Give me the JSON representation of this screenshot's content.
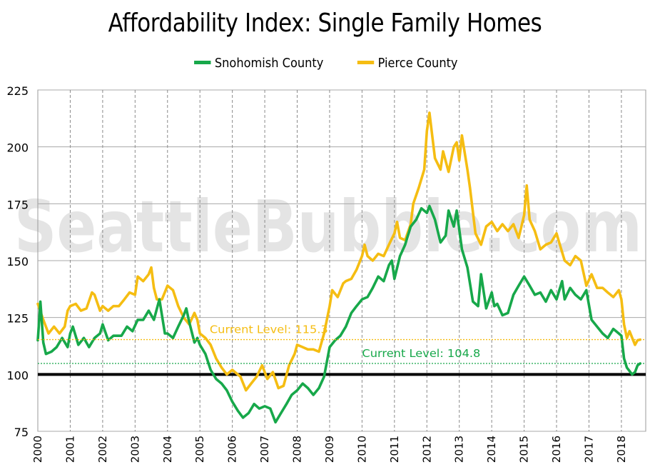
{
  "colors": {
    "snohomish": "#17a84a",
    "pierce": "#f5bd12",
    "baseline": "#000000",
    "watermark": "#e4e4e4"
  },
  "watermark": "SeattleBubble.com",
  "chart_data": {
    "type": "line",
    "title": "Affordability Index: Single Family Homes",
    "xlabel": "",
    "ylabel": "",
    "ylim": [
      75,
      225
    ],
    "xlim": [
      2000,
      2018.75
    ],
    "yticks": [
      "75",
      "100",
      "125",
      "150",
      "175",
      "200",
      "225"
    ],
    "xticks": [
      "2000",
      "2001",
      "2002",
      "2003",
      "2004",
      "2005",
      "2006",
      "2007",
      "2008",
      "2009",
      "2010",
      "2011",
      "2012",
      "2013",
      "2014",
      "2015",
      "2016",
      "2017",
      "2018"
    ],
    "grid": true,
    "legend_position": "top-center",
    "baseline": 100,
    "series": [
      {
        "name": "Snohomish County",
        "color": "#17a84a",
        "points": [
          [
            2000.0,
            115
          ],
          [
            2000.08,
            132
          ],
          [
            2000.17,
            114
          ],
          [
            2000.25,
            109
          ],
          [
            2000.42,
            110
          ],
          [
            2000.58,
            112
          ],
          [
            2000.75,
            116
          ],
          [
            2000.92,
            112
          ],
          [
            2001.0,
            118
          ],
          [
            2001.08,
            121
          ],
          [
            2001.25,
            113
          ],
          [
            2001.42,
            116
          ],
          [
            2001.58,
            112
          ],
          [
            2001.75,
            116
          ],
          [
            2001.92,
            118
          ],
          [
            2002.0,
            122
          ],
          [
            2002.17,
            115
          ],
          [
            2002.33,
            117
          ],
          [
            2002.58,
            117
          ],
          [
            2002.75,
            121
          ],
          [
            2002.92,
            119
          ],
          [
            2003.08,
            124
          ],
          [
            2003.25,
            124
          ],
          [
            2003.42,
            128
          ],
          [
            2003.58,
            124
          ],
          [
            2003.75,
            133
          ],
          [
            2003.92,
            118
          ],
          [
            2004.0,
            118
          ],
          [
            2004.17,
            116
          ],
          [
            2004.33,
            121
          ],
          [
            2004.5,
            126
          ],
          [
            2004.58,
            129
          ],
          [
            2004.67,
            123
          ],
          [
            2004.83,
            114
          ],
          [
            2004.92,
            116
          ],
          [
            2005.0,
            113
          ],
          [
            2005.17,
            109
          ],
          [
            2005.33,
            102
          ],
          [
            2005.5,
            98
          ],
          [
            2005.67,
            96
          ],
          [
            2005.83,
            93
          ],
          [
            2006.0,
            88
          ],
          [
            2006.17,
            84
          ],
          [
            2006.33,
            81
          ],
          [
            2006.5,
            83
          ],
          [
            2006.67,
            87
          ],
          [
            2006.83,
            85
          ],
          [
            2007.0,
            86
          ],
          [
            2007.17,
            85
          ],
          [
            2007.33,
            79
          ],
          [
            2007.5,
            83
          ],
          [
            2007.67,
            87
          ],
          [
            2007.83,
            91
          ],
          [
            2008.0,
            93
          ],
          [
            2008.17,
            96
          ],
          [
            2008.33,
            94
          ],
          [
            2008.5,
            91
          ],
          [
            2008.67,
            94
          ],
          [
            2008.83,
            99
          ],
          [
            2009.0,
            112
          ],
          [
            2009.17,
            115
          ],
          [
            2009.33,
            117
          ],
          [
            2009.5,
            121
          ],
          [
            2009.67,
            127
          ],
          [
            2009.83,
            130
          ],
          [
            2010.0,
            133
          ],
          [
            2010.17,
            134
          ],
          [
            2010.33,
            138
          ],
          [
            2010.5,
            143
          ],
          [
            2010.67,
            141
          ],
          [
            2010.83,
            148
          ],
          [
            2010.92,
            150
          ],
          [
            2011.0,
            142
          ],
          [
            2011.17,
            152
          ],
          [
            2011.33,
            157
          ],
          [
            2011.5,
            165
          ],
          [
            2011.67,
            168
          ],
          [
            2011.83,
            173
          ],
          [
            2012.0,
            171
          ],
          [
            2012.08,
            174
          ],
          [
            2012.25,
            168
          ],
          [
            2012.42,
            158
          ],
          [
            2012.58,
            161
          ],
          [
            2012.67,
            172
          ],
          [
            2012.83,
            165
          ],
          [
            2012.92,
            172
          ],
          [
            2013.08,
            155
          ],
          [
            2013.25,
            147
          ],
          [
            2013.42,
            132
          ],
          [
            2013.58,
            130
          ],
          [
            2013.67,
            144
          ],
          [
            2013.83,
            129
          ],
          [
            2014.0,
            136
          ],
          [
            2014.08,
            130
          ],
          [
            2014.17,
            131
          ],
          [
            2014.33,
            126
          ],
          [
            2014.5,
            127
          ],
          [
            2014.67,
            135
          ],
          [
            2014.83,
            139
          ],
          [
            2015.0,
            143
          ],
          [
            2015.17,
            139
          ],
          [
            2015.33,
            135
          ],
          [
            2015.5,
            136
          ],
          [
            2015.67,
            132
          ],
          [
            2015.83,
            137
          ],
          [
            2016.0,
            133
          ],
          [
            2016.17,
            141
          ],
          [
            2016.25,
            133
          ],
          [
            2016.42,
            138
          ],
          [
            2016.58,
            135
          ],
          [
            2016.75,
            133
          ],
          [
            2016.92,
            137
          ],
          [
            2017.08,
            124
          ],
          [
            2017.25,
            121
          ],
          [
            2017.42,
            118
          ],
          [
            2017.58,
            116
          ],
          [
            2017.75,
            120
          ],
          [
            2017.92,
            118
          ],
          [
            2018.0,
            117
          ],
          [
            2018.08,
            107
          ],
          [
            2018.17,
            103
          ],
          [
            2018.33,
            100
          ],
          [
            2018.42,
            101
          ],
          [
            2018.5,
            104
          ],
          [
            2018.58,
            104.8
          ]
        ]
      },
      {
        "name": "Pierce County",
        "color": "#f5bd12",
        "points": [
          [
            2000.0,
            131
          ],
          [
            2000.17,
            124
          ],
          [
            2000.33,
            118
          ],
          [
            2000.5,
            121
          ],
          [
            2000.67,
            118
          ],
          [
            2000.83,
            121
          ],
          [
            2000.92,
            128
          ],
          [
            2001.0,
            130
          ],
          [
            2001.17,
            131
          ],
          [
            2001.33,
            128
          ],
          [
            2001.5,
            129
          ],
          [
            2001.67,
            136
          ],
          [
            2001.75,
            135
          ],
          [
            2001.92,
            128
          ],
          [
            2002.0,
            130
          ],
          [
            2002.17,
            128
          ],
          [
            2002.33,
            130
          ],
          [
            2002.5,
            130
          ],
          [
            2002.67,
            133
          ],
          [
            2002.83,
            136
          ],
          [
            2003.0,
            135
          ],
          [
            2003.08,
            143
          ],
          [
            2003.25,
            141
          ],
          [
            2003.42,
            144
          ],
          [
            2003.5,
            147
          ],
          [
            2003.58,
            138
          ],
          [
            2003.67,
            133
          ],
          [
            2003.83,
            133
          ],
          [
            2004.0,
            139
          ],
          [
            2004.17,
            137
          ],
          [
            2004.33,
            130
          ],
          [
            2004.5,
            125
          ],
          [
            2004.67,
            122
          ],
          [
            2004.83,
            127
          ],
          [
            2004.92,
            124
          ],
          [
            2005.0,
            118
          ],
          [
            2005.17,
            116
          ],
          [
            2005.33,
            113
          ],
          [
            2005.5,
            107
          ],
          [
            2005.67,
            103
          ],
          [
            2005.83,
            100
          ],
          [
            2006.0,
            102
          ],
          [
            2006.25,
            99
          ],
          [
            2006.42,
            93
          ],
          [
            2006.58,
            96
          ],
          [
            2006.75,
            99
          ],
          [
            2006.92,
            104
          ],
          [
            2007.08,
            98
          ],
          [
            2007.25,
            101
          ],
          [
            2007.42,
            94
          ],
          [
            2007.58,
            95
          ],
          [
            2007.75,
            104
          ],
          [
            2007.92,
            109
          ],
          [
            2008.0,
            113
          ],
          [
            2008.17,
            112
          ],
          [
            2008.33,
            111
          ],
          [
            2008.5,
            111
          ],
          [
            2008.67,
            110
          ],
          [
            2008.83,
            118
          ],
          [
            2009.0,
            130
          ],
          [
            2009.08,
            137
          ],
          [
            2009.25,
            134
          ],
          [
            2009.42,
            140
          ],
          [
            2009.5,
            141
          ],
          [
            2009.67,
            142
          ],
          [
            2009.83,
            146
          ],
          [
            2010.0,
            152
          ],
          [
            2010.08,
            157
          ],
          [
            2010.17,
            152
          ],
          [
            2010.33,
            150
          ],
          [
            2010.5,
            153
          ],
          [
            2010.67,
            152
          ],
          [
            2010.83,
            157
          ],
          [
            2011.0,
            162
          ],
          [
            2011.08,
            167
          ],
          [
            2011.17,
            160
          ],
          [
            2011.33,
            159
          ],
          [
            2011.5,
            166
          ],
          [
            2011.58,
            175
          ],
          [
            2011.75,
            182
          ],
          [
            2011.92,
            190
          ],
          [
            2012.0,
            207
          ],
          [
            2012.08,
            215
          ],
          [
            2012.25,
            195
          ],
          [
            2012.42,
            190
          ],
          [
            2012.5,
            198
          ],
          [
            2012.67,
            189
          ],
          [
            2012.83,
            200
          ],
          [
            2012.92,
            202
          ],
          [
            2013.0,
            194
          ],
          [
            2013.08,
            205
          ],
          [
            2013.25,
            190
          ],
          [
            2013.33,
            182
          ],
          [
            2013.5,
            162
          ],
          [
            2013.67,
            157
          ],
          [
            2013.83,
            165
          ],
          [
            2014.0,
            167
          ],
          [
            2014.17,
            163
          ],
          [
            2014.33,
            166
          ],
          [
            2014.5,
            163
          ],
          [
            2014.67,
            166
          ],
          [
            2014.83,
            160
          ],
          [
            2015.0,
            170
          ],
          [
            2015.08,
            183
          ],
          [
            2015.17,
            168
          ],
          [
            2015.33,
            163
          ],
          [
            2015.5,
            155
          ],
          [
            2015.67,
            157
          ],
          [
            2015.83,
            158
          ],
          [
            2016.0,
            162
          ],
          [
            2016.08,
            158
          ],
          [
            2016.25,
            150
          ],
          [
            2016.42,
            148
          ],
          [
            2016.58,
            152
          ],
          [
            2016.75,
            150
          ],
          [
            2016.92,
            139
          ],
          [
            2017.08,
            144
          ],
          [
            2017.25,
            138
          ],
          [
            2017.42,
            138
          ],
          [
            2017.58,
            136
          ],
          [
            2017.75,
            134
          ],
          [
            2017.92,
            137
          ],
          [
            2018.0,
            133
          ],
          [
            2018.08,
            122
          ],
          [
            2018.17,
            116
          ],
          [
            2018.25,
            119
          ],
          [
            2018.42,
            113
          ],
          [
            2018.5,
            115
          ],
          [
            2018.58,
            115.3
          ]
        ]
      }
    ],
    "annotations": [
      {
        "label": "Current Level: 115.3",
        "series": "Pierce County",
        "value": 115.3,
        "x": 2005.3
      },
      {
        "label": "Current Level: 104.8",
        "series": "Snohomish County",
        "value": 104.8,
        "x": 2010.0
      }
    ]
  }
}
